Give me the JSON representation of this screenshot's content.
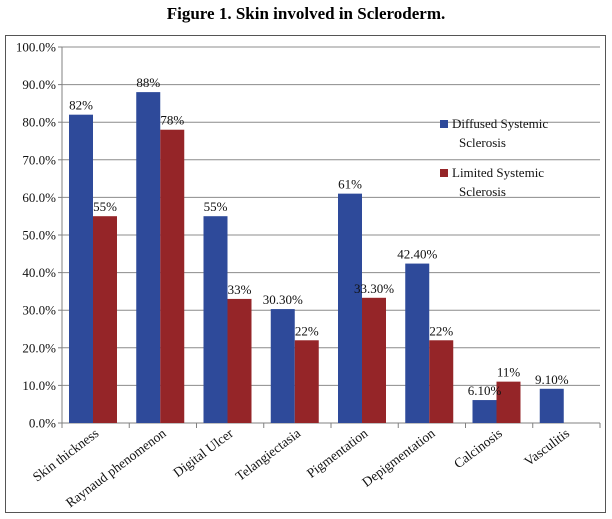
{
  "figure": {
    "title": "Figure 1. Skin involved in Scleroderm."
  },
  "chart_data": {
    "type": "bar",
    "title": "Figure 1. Skin involved in Scleroderm.",
    "xlabel": "",
    "ylabel": "",
    "ylim": [
      0,
      100
    ],
    "ytick_step": 10,
    "ytick_labels": [
      "0.0%",
      "10.0%",
      "20.0%",
      "30.0%",
      "40.0%",
      "50.0%",
      "60.0%",
      "70.0%",
      "80.0%",
      "90.0%",
      "100.0%"
    ],
    "grid": true,
    "legend_position": "right",
    "categories": [
      "Skin thickness",
      "Raynaud phenomenon",
      "Digital Ulcer",
      "Telangiectasia",
      "Pigmentation",
      "Depigmentation",
      "Calcinosis",
      "Vasculitis"
    ],
    "series": [
      {
        "name": "Diffused Systemic Sclerosis",
        "legend_lines": [
          "Diffused Systemic",
          "Sclerosis"
        ],
        "color": "#2e4a9a",
        "values": [
          82,
          88,
          55,
          30.3,
          61,
          42.4,
          6.1,
          9.1
        ],
        "labels": [
          "82%",
          "88%",
          "55%",
          "30.30%",
          "61%",
          "42.40%",
          "6.10%",
          "9.10%"
        ]
      },
      {
        "name": "Limited Systemic Sclerosis",
        "legend_lines": [
          "Limited Systemic",
          "Sclerosis"
        ],
        "color": "#952528",
        "values": [
          55,
          78,
          33,
          22,
          33.3,
          22,
          11,
          null
        ],
        "labels": [
          "55%",
          "78%",
          "33%",
          "22%",
          "33.30%",
          "22%",
          "11%",
          null
        ]
      }
    ]
  }
}
